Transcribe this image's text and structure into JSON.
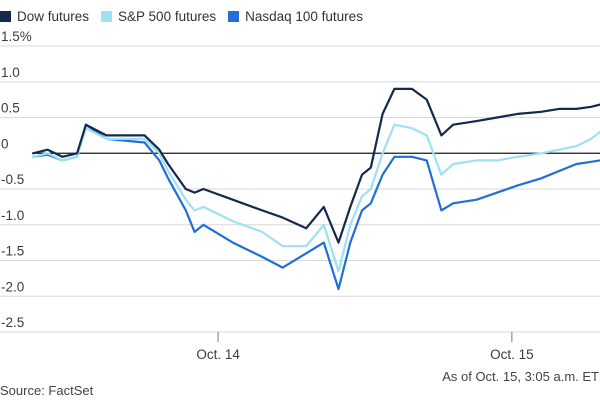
{
  "chart_data": {
    "type": "line",
    "title": "",
    "xlabel": "",
    "ylabel": "",
    "ylim": [
      -2.5,
      1.5
    ],
    "yticks": [
      1.5,
      1.0,
      0.5,
      0,
      -0.5,
      -1.0,
      -1.5,
      -2.0,
      -2.5
    ],
    "ytick_labels": [
      "1.5%",
      "1.0",
      "0.5",
      "0",
      "-0.5",
      "-1.0",
      "-1.5",
      "-2.0",
      "-2.5"
    ],
    "xlim": [
      -0.63,
      1.3
    ],
    "xticks": [
      0,
      1
    ],
    "xtick_labels": [
      "Oct. 14",
      "Oct. 15"
    ],
    "grid": true,
    "legend_position": "top-left",
    "colors": {
      "dow": "#14294b",
      "sp500": "#9ee0f4",
      "nasdaq": "#1f6fd6",
      "grid": "#d9d9d9",
      "zero_line": "#1a1a1a",
      "text": "#3b3b3b"
    },
    "series": [
      {
        "name": "Dow futures",
        "key": "dow",
        "x": [
          -0.63,
          -0.58,
          -0.53,
          -0.48,
          -0.45,
          -0.38,
          -0.25,
          -0.2,
          -0.17,
          -0.11,
          -0.08,
          -0.05,
          0.05,
          0.15,
          0.22,
          0.3,
          0.36,
          0.41,
          0.45,
          0.49,
          0.52,
          0.56,
          0.6,
          0.66,
          0.71,
          0.76,
          0.8,
          0.88,
          0.95,
          1.02,
          1.1,
          1.16,
          1.22,
          1.27,
          1.3
        ],
        "values": [
          0.0,
          0.05,
          -0.05,
          0.0,
          0.4,
          0.25,
          0.25,
          0.05,
          -0.15,
          -0.5,
          -0.55,
          -0.5,
          -0.65,
          -0.8,
          -0.9,
          -1.05,
          -0.75,
          -1.25,
          -0.75,
          -0.3,
          -0.2,
          0.55,
          0.9,
          0.9,
          0.75,
          0.25,
          0.4,
          0.45,
          0.5,
          0.55,
          0.58,
          0.62,
          0.62,
          0.65,
          0.68
        ]
      },
      {
        "name": "S&P 500 futures",
        "key": "sp500",
        "x": [
          -0.63,
          -0.58,
          -0.53,
          -0.48,
          -0.45,
          -0.38,
          -0.25,
          -0.2,
          -0.17,
          -0.11,
          -0.08,
          -0.05,
          0.05,
          0.15,
          0.22,
          0.3,
          0.36,
          0.41,
          0.45,
          0.49,
          0.52,
          0.56,
          0.6,
          0.66,
          0.71,
          0.76,
          0.8,
          0.88,
          0.95,
          1.02,
          1.1,
          1.16,
          1.22,
          1.27,
          1.3
        ],
        "values": [
          -0.05,
          0.0,
          -0.1,
          -0.05,
          0.35,
          0.2,
          0.2,
          0.0,
          -0.25,
          -0.65,
          -0.8,
          -0.75,
          -0.95,
          -1.1,
          -1.3,
          -1.3,
          -1.0,
          -1.65,
          -1.0,
          -0.6,
          -0.5,
          0.0,
          0.4,
          0.35,
          0.25,
          -0.3,
          -0.15,
          -0.1,
          -0.1,
          -0.05,
          0.0,
          0.05,
          0.1,
          0.2,
          0.3
        ]
      },
      {
        "name": "Nasdaq 100 futures",
        "key": "nasdaq",
        "x": [
          -0.63,
          -0.58,
          -0.53,
          -0.48,
          -0.45,
          -0.38,
          -0.25,
          -0.2,
          -0.17,
          -0.11,
          -0.08,
          -0.05,
          0.05,
          0.15,
          0.22,
          0.3,
          0.36,
          0.41,
          0.45,
          0.49,
          0.52,
          0.56,
          0.6,
          0.66,
          0.71,
          0.76,
          0.8,
          0.88,
          0.95,
          1.02,
          1.1,
          1.16,
          1.22,
          1.27,
          1.3
        ],
        "values": [
          -0.05,
          -0.02,
          -0.1,
          -0.05,
          0.4,
          0.2,
          0.15,
          -0.1,
          -0.35,
          -0.8,
          -1.1,
          -1.0,
          -1.25,
          -1.45,
          -1.6,
          -1.4,
          -1.25,
          -1.9,
          -1.25,
          -0.8,
          -0.7,
          -0.3,
          -0.05,
          -0.05,
          -0.1,
          -0.8,
          -0.7,
          -0.65,
          -0.55,
          -0.45,
          -0.35,
          -0.25,
          -0.15,
          -0.12,
          -0.1
        ]
      }
    ]
  },
  "footer": {
    "source": "Source: FactSet",
    "timestamp": "As of Oct. 15, 3:05 a.m. ET"
  }
}
